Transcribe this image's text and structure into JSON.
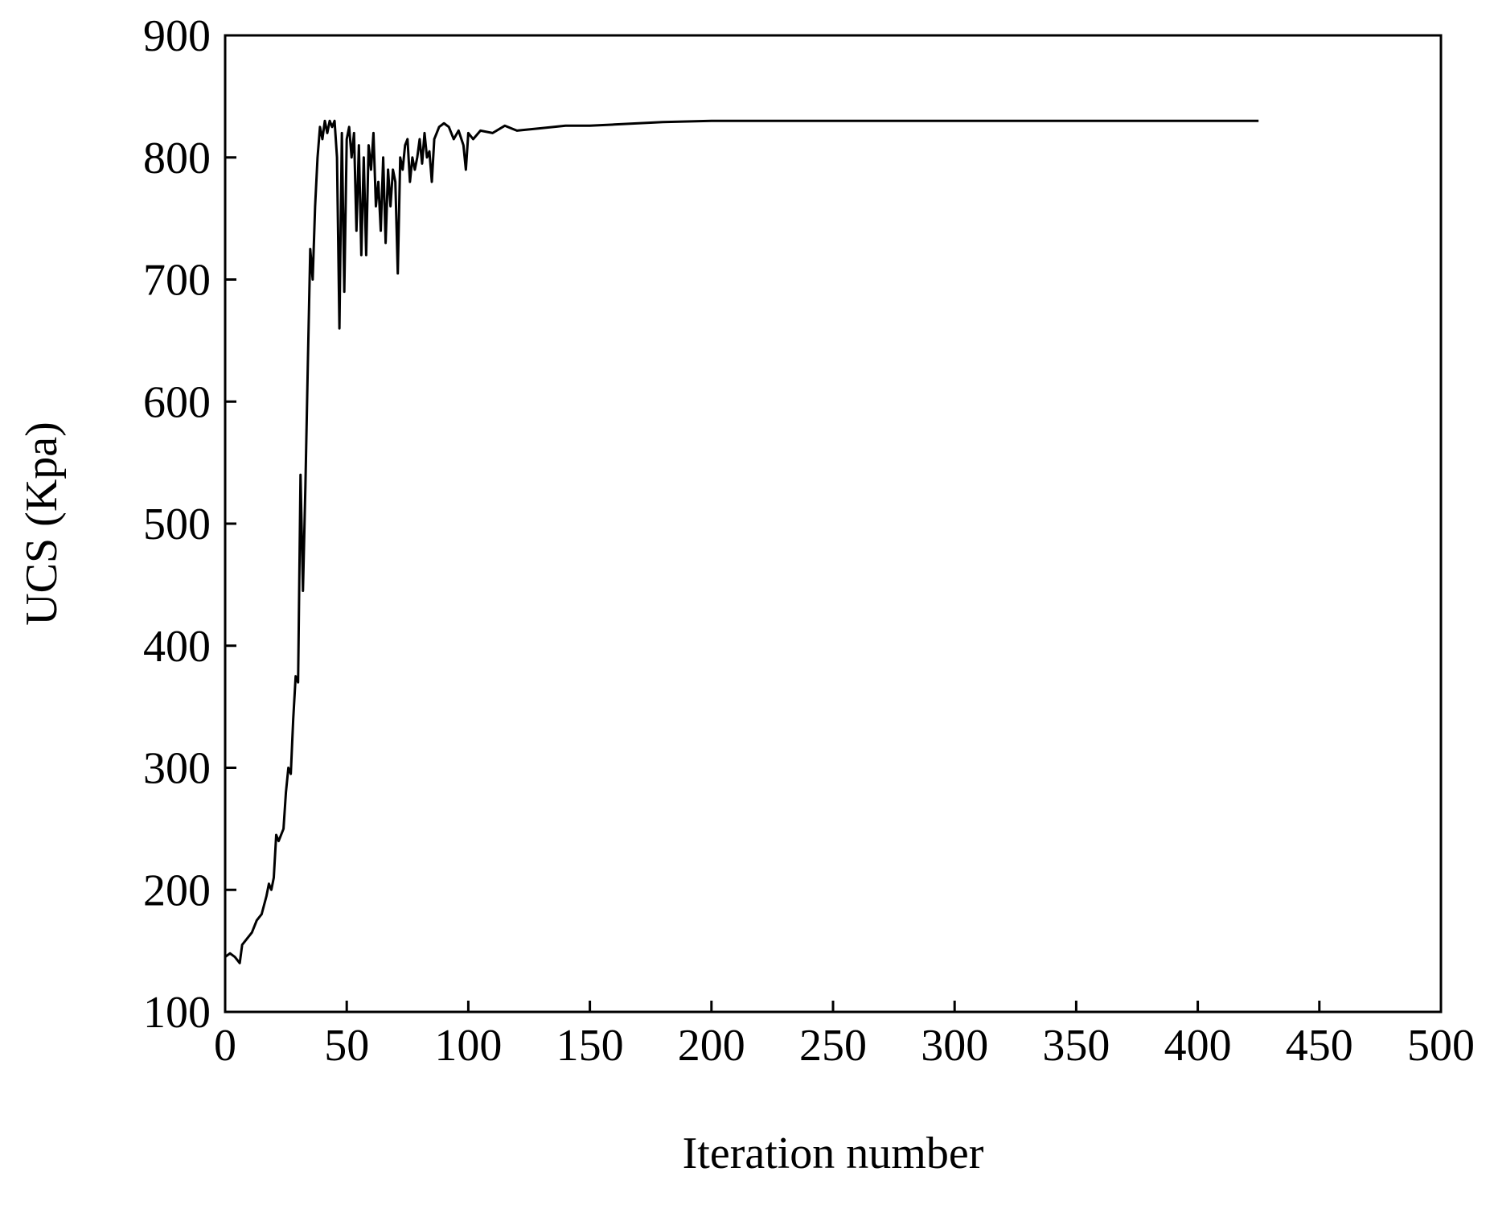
{
  "chart_data": {
    "type": "line",
    "x_label": "Iteration number",
    "y_label": "UCS (Kpa)",
    "x": [
      0,
      2,
      4,
      6,
      7,
      9,
      11,
      13,
      15,
      17,
      18,
      19,
      20,
      21,
      22,
      24,
      25,
      26,
      27,
      28,
      29,
      30,
      31,
      32,
      33,
      34,
      35,
      36,
      37,
      38,
      39,
      40,
      41,
      42,
      43,
      44,
      45,
      46,
      47,
      48,
      49,
      50,
      51,
      52,
      53,
      54,
      55,
      56,
      57,
      58,
      59,
      60,
      61,
      62,
      63,
      64,
      65,
      66,
      67,
      68,
      69,
      70,
      71,
      72,
      73,
      74,
      75,
      76,
      77,
      78,
      79,
      80,
      81,
      82,
      83,
      84,
      85,
      86,
      87,
      88,
      90,
      92,
      94,
      96,
      98,
      99,
      100,
      102,
      105,
      110,
      115,
      120,
      130,
      140,
      150,
      160,
      180,
      200,
      250,
      300,
      350,
      400,
      425
    ],
    "series": [
      {
        "color": "#000000",
        "values": [
          145,
          148,
          145,
          140,
          155,
          160,
          165,
          175,
          180,
          195,
          205,
          200,
          210,
          245,
          240,
          250,
          280,
          300,
          295,
          340,
          375,
          370,
          540,
          445,
          530,
          630,
          725,
          700,
          760,
          800,
          825,
          815,
          830,
          820,
          830,
          825,
          830,
          800,
          660,
          820,
          690,
          815,
          825,
          800,
          820,
          740,
          810,
          720,
          800,
          720,
          810,
          790,
          820,
          760,
          780,
          740,
          800,
          730,
          790,
          760,
          790,
          780,
          705,
          800,
          790,
          810,
          815,
          780,
          800,
          790,
          800,
          815,
          795,
          820,
          800,
          805,
          780,
          815,
          820,
          825,
          828,
          825,
          815,
          822,
          810,
          790,
          820,
          815,
          822,
          820,
          826,
          822,
          824,
          826,
          826,
          827,
          829,
          830,
          830,
          830,
          830,
          830,
          830
        ]
      }
    ],
    "xlim": [
      0,
      500
    ],
    "ylim": [
      100,
      900
    ],
    "xticks": [
      0,
      50,
      100,
      150,
      200,
      250,
      300,
      350,
      400,
      450,
      500
    ],
    "yticks": [
      100,
      200,
      300,
      400,
      500,
      600,
      700,
      800,
      900
    ]
  }
}
